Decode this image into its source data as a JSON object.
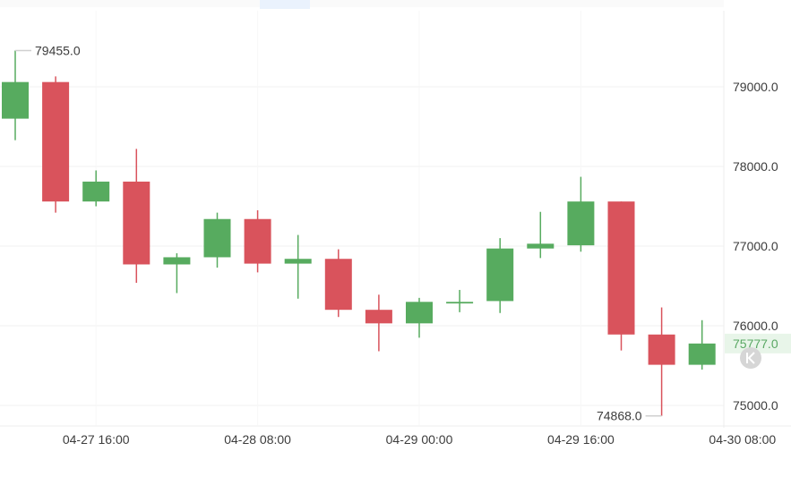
{
  "chart_data": {
    "type": "candlestick",
    "y_ticks": [
      "79000.0",
      "78000.0",
      "77000.0",
      "76000.0",
      "75000.0"
    ],
    "x_ticks": [
      "04-27 16:00",
      "04-28 08:00",
      "04-29 00:00",
      "04-29 16:00",
      "04-30 08:00"
    ],
    "ylim": [
      74300,
      79700
    ],
    "grid": true,
    "candles": [
      {
        "o": 78600,
        "h": 79455,
        "l": 78330,
        "c": 79060
      },
      {
        "o": 79060,
        "h": 79130,
        "l": 77420,
        "c": 77560
      },
      {
        "o": 77560,
        "h": 77950,
        "l": 77500,
        "c": 77810
      },
      {
        "o": 77810,
        "h": 78220,
        "l": 76540,
        "c": 76770
      },
      {
        "o": 76770,
        "h": 76910,
        "l": 76410,
        "c": 76860
      },
      {
        "o": 76860,
        "h": 77420,
        "l": 76730,
        "c": 77340
      },
      {
        "o": 77340,
        "h": 77450,
        "l": 76670,
        "c": 76780
      },
      {
        "o": 76780,
        "h": 77140,
        "l": 76340,
        "c": 76840
      },
      {
        "o": 76840,
        "h": 76960,
        "l": 76110,
        "c": 76200
      },
      {
        "o": 76200,
        "h": 76390,
        "l": 75680,
        "c": 76030
      },
      {
        "o": 76030,
        "h": 76350,
        "l": 75850,
        "c": 76300
      },
      {
        "o": 76280,
        "h": 76450,
        "l": 76170,
        "c": 76300
      },
      {
        "o": 76310,
        "h": 77100,
        "l": 76160,
        "c": 76970
      },
      {
        "o": 76970,
        "h": 77430,
        "l": 76850,
        "c": 77030
      },
      {
        "o": 77010,
        "h": 77870,
        "l": 76930,
        "c": 77560
      },
      {
        "o": 77560,
        "h": 77560,
        "l": 75690,
        "c": 75890
      },
      {
        "o": 75890,
        "h": 76230,
        "l": 74868,
        "c": 75510
      },
      {
        "o": 75510,
        "h": 76070,
        "l": 75450,
        "c": 75777
      }
    ],
    "high_marker": "79455.0",
    "low_marker": "74868.0",
    "last_price": "75777.0",
    "colors": {
      "up": "#57ab5f",
      "down": "#d9535c",
      "last_price_bg": "#e8f5e9",
      "last_price_text": "#5aa864"
    }
  },
  "controls": {
    "reset_icon": "chevron-double-left-icon"
  }
}
